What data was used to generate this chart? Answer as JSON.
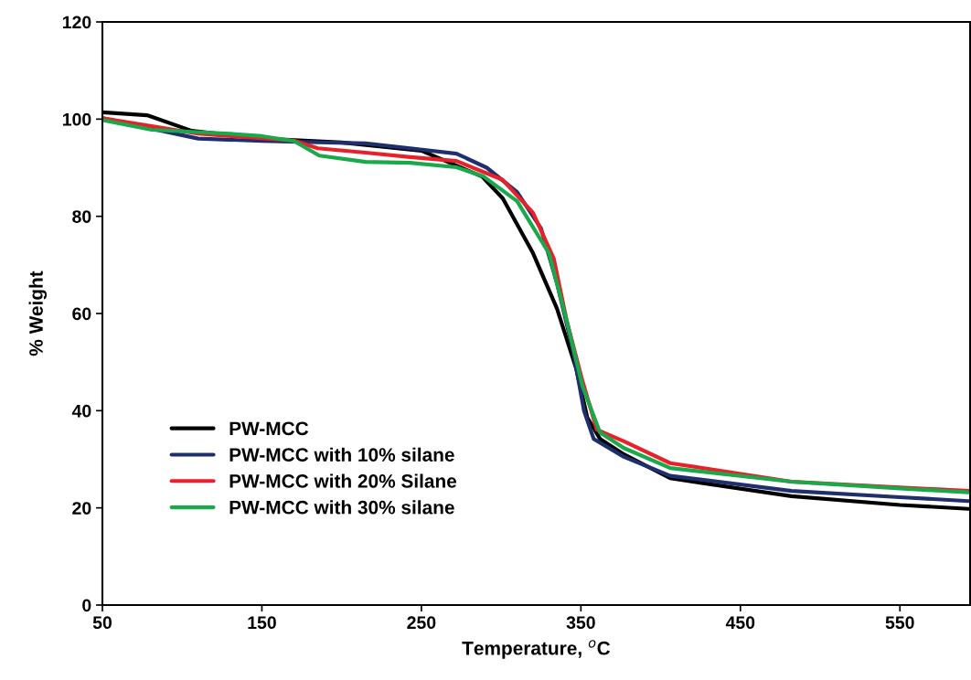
{
  "chart_data": {
    "type": "line",
    "xlabel": "Temperature, $^{o}$C",
    "ylabel": "% Weight",
    "xlim": [
      50,
      594
    ],
    "xticks": [
      50,
      150,
      250,
      350,
      450,
      550
    ],
    "ylim": [
      0,
      120
    ],
    "yticks": [
      0,
      20,
      40,
      60,
      80,
      100,
      120
    ],
    "grid": false,
    "legend": "bottom left",
    "marker": "none",
    "line_style": "solid",
    "series": [
      {
        "name": "PW-MCC",
        "color": "#000000",
        "x": [
          50,
          78,
          106,
          150,
          200,
          250,
          288,
          301,
          320,
          335,
          347,
          354,
          362,
          377,
          406,
          482,
          550,
          593
        ],
        "values": [
          101.4,
          100.8,
          97.6,
          96,
          95.2,
          93.5,
          88.2,
          83.7,
          72.4,
          61,
          48.7,
          38.6,
          34.2,
          31,
          26.1,
          22.4,
          20.6,
          19.8
        ]
      },
      {
        "name": "PW-MCC with 10% silane",
        "color": "#1f2f6e",
        "x": [
          50,
          110,
          150,
          215,
          243,
          272,
          291,
          310,
          325,
          335,
          345,
          352,
          358,
          377,
          406,
          482,
          550,
          593
        ],
        "values": [
          100.2,
          96,
          95.5,
          95,
          94,
          92.9,
          90,
          85,
          77.5,
          66.2,
          52.5,
          39.9,
          34.2,
          30.5,
          26.6,
          23.5,
          22.2,
          21.4
        ]
      },
      {
        "name": "PW-MCC with 20% Silane",
        "color": "#e8202a",
        "x": [
          50,
          110,
          170,
          185,
          215,
          243,
          272,
          301,
          320,
          333,
          341,
          351,
          360,
          377,
          406,
          482,
          550,
          593
        ],
        "values": [
          100.2,
          97,
          95.6,
          94,
          93.1,
          92.2,
          91.4,
          87.5,
          80.7,
          71.3,
          58.7,
          46.1,
          36.1,
          33.7,
          29.2,
          25.4,
          24.2,
          23.5
        ]
      },
      {
        "name": "PW-MCC with 30% silane",
        "color": "#1aa94a",
        "x": [
          50,
          81,
          130,
          150,
          170,
          186,
          215,
          243,
          272,
          289,
          310,
          330,
          341,
          351,
          362,
          377,
          406,
          482,
          550,
          593
        ],
        "values": [
          99.8,
          97.8,
          97,
          96.5,
          95.5,
          92.5,
          91.2,
          91,
          90.1,
          88.2,
          83.1,
          72.4,
          58.7,
          45,
          35.5,
          32.3,
          28.2,
          25.4,
          24,
          23.2
        ]
      }
    ]
  }
}
